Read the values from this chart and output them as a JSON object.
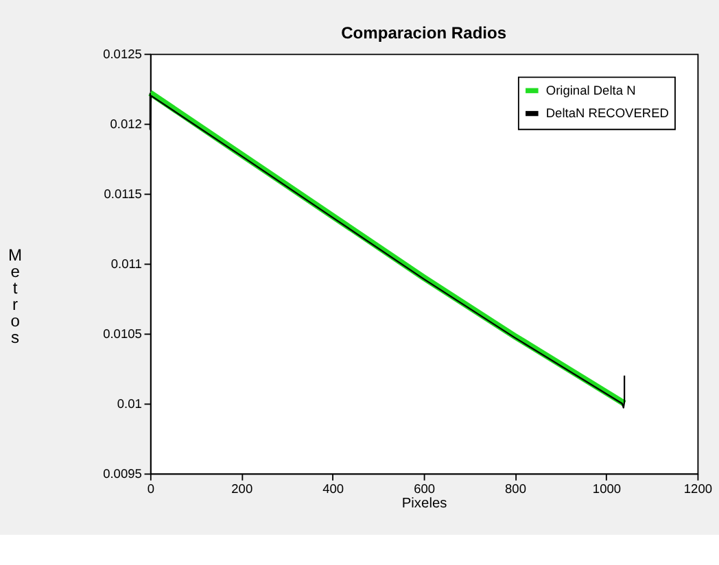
{
  "chart_data": {
    "type": "line",
    "title": "Comparacion Radios",
    "xlabel": "Pixeles",
    "ylabel": "Metros",
    "xlim": [
      0,
      1200
    ],
    "xticks": [
      0,
      200,
      400,
      600,
      800,
      1000,
      1200
    ],
    "ylim": [
      0.0095,
      0.0125
    ],
    "yticks": [
      0.0095,
      0.01,
      0.0105,
      0.011,
      0.0115,
      0.012,
      0.0125
    ],
    "grid": false,
    "legend": "top right",
    "marker": "none",
    "line_style": "solid",
    "series": [
      {
        "name": "Original Delta N",
        "color": "#22dd22",
        "x": [
          0,
          200,
          400,
          600,
          800,
          1040
        ],
        "values": [
          0.01222,
          0.01178,
          0.01134,
          0.0109,
          0.01048,
          0.01
        ]
      },
      {
        "name": "DeltaN RECOVERED",
        "color": "#000000",
        "x": [
          0,
          0,
          2,
          200,
          400,
          600,
          800,
          1035,
          1038,
          1040,
          1040
        ],
        "values": [
          0.01222,
          0.01196,
          0.0122,
          0.01177,
          0.01133,
          0.01089,
          0.01047,
          0.01,
          0.00997,
          0.01001,
          0.0102
        ]
      }
    ]
  }
}
